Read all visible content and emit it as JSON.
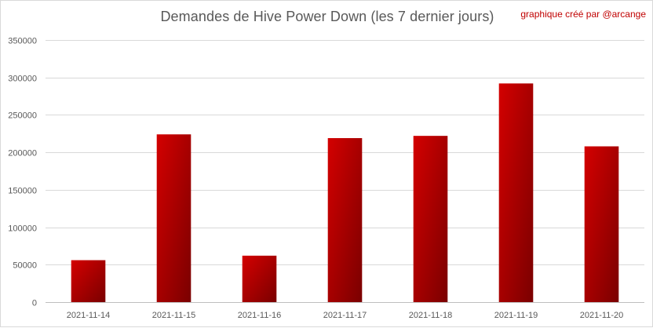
{
  "chart_data": {
    "type": "bar",
    "title": "Demandes de Hive Power Down (les 7 dernier jours)",
    "credit": "graphique créé par @arcange",
    "categories": [
      "2021-11-14",
      "2021-11-15",
      "2021-11-16",
      "2021-11-17",
      "2021-11-18",
      "2021-11-19",
      "2021-11-20"
    ],
    "values": [
      56000,
      224000,
      62000,
      219000,
      222000,
      292000,
      208000
    ],
    "ylim": [
      0,
      350000
    ],
    "yticks": [
      "0",
      "50000",
      "100000",
      "150000",
      "200000",
      "250000",
      "300000",
      "350000"
    ],
    "ytick_values": [
      0,
      50000,
      100000,
      150000,
      200000,
      250000,
      300000,
      350000
    ],
    "xlabel": "",
    "ylabel": "",
    "grid": true,
    "colors": {
      "bar_light": "#d40000",
      "bar_dark": "#7a0000",
      "grid": "#d9d9d9",
      "axis": "#bfbfbf"
    }
  }
}
